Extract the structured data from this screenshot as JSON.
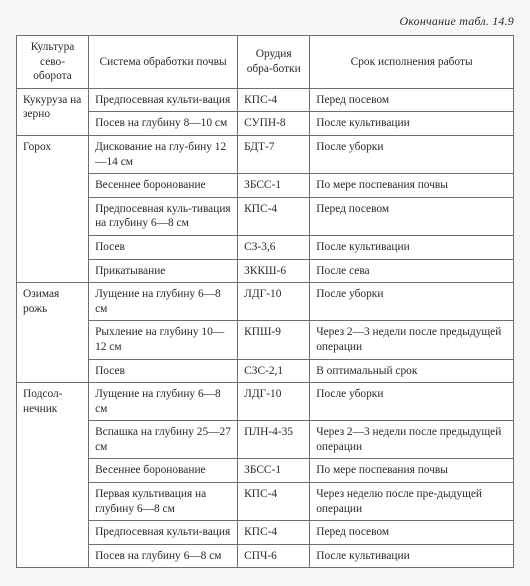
{
  "caption": "Окончание табл. 14.9",
  "columns": [
    "Культура сево-оборота",
    "Система обработки почвы",
    "Орудия обра-ботки",
    "Срок исполнения работы"
  ],
  "groups": [
    {
      "crop": "Кукуруза на зерно",
      "rows": [
        {
          "op": "Предпосевная культи-вация",
          "tool": "КПС-4",
          "time": "Перед посевом"
        },
        {
          "op": "Посев на глубину 8—10 см",
          "tool": "СУПН-8",
          "time": "После культивации"
        }
      ]
    },
    {
      "crop": "Горох",
      "rows": [
        {
          "op": "Дискование на глу-бину 12—14 см",
          "tool": "БДТ-7",
          "time": "После уборки"
        },
        {
          "op": "Весеннее боронование",
          "tool": "ЗБСС-1",
          "time": "По мере поспевания почвы"
        },
        {
          "op": "Предпосевная куль-тивация на глубину 6—8 см",
          "tool": "КПС-4",
          "time": "Перед посевом"
        },
        {
          "op": "Посев",
          "tool": "СЗ-3,6",
          "time": "После культивации"
        },
        {
          "op": "Прикатывание",
          "tool": "ЗККШ-6",
          "time": "После сева"
        }
      ]
    },
    {
      "crop": "Озимая рожь",
      "rows": [
        {
          "op": "Лущение на глубину 6—8 см",
          "tool": "ЛДГ-10",
          "time": "После уборки"
        },
        {
          "op": "Рыхление на глубину 10—12 см",
          "tool": "КПШ-9",
          "time": "Через 2—3 недели после предыдущей операции"
        },
        {
          "op": "Посев",
          "tool": "СЗС-2,1",
          "time": "В оптимальный срок"
        }
      ]
    },
    {
      "crop": "Подсол-нечник",
      "rows": [
        {
          "op": "Лущение на глубину 6—8 см",
          "tool": "ЛДГ-10",
          "time": "После уборки"
        },
        {
          "op": "Вспашка на глубину 25—27 см",
          "tool": "ПЛН-4-35",
          "time": "Через 2—3 недели после предыдущей операции"
        },
        {
          "op": "Весеннее боронование",
          "tool": "ЗБСС-1",
          "time": "По мере поспевания почвы"
        },
        {
          "op": "Первая культивация на глубину 6—8 см",
          "tool": "КПС-4",
          "time": "Через неделю после пре-дыдущей операции"
        },
        {
          "op": "Предпосевная культи-вация",
          "tool": "КПС-4",
          "time": "Перед посевом"
        },
        {
          "op": "Посев на глубину 6—8 см",
          "tool": "СПЧ-6",
          "time": "После культивации"
        }
      ]
    }
  ]
}
